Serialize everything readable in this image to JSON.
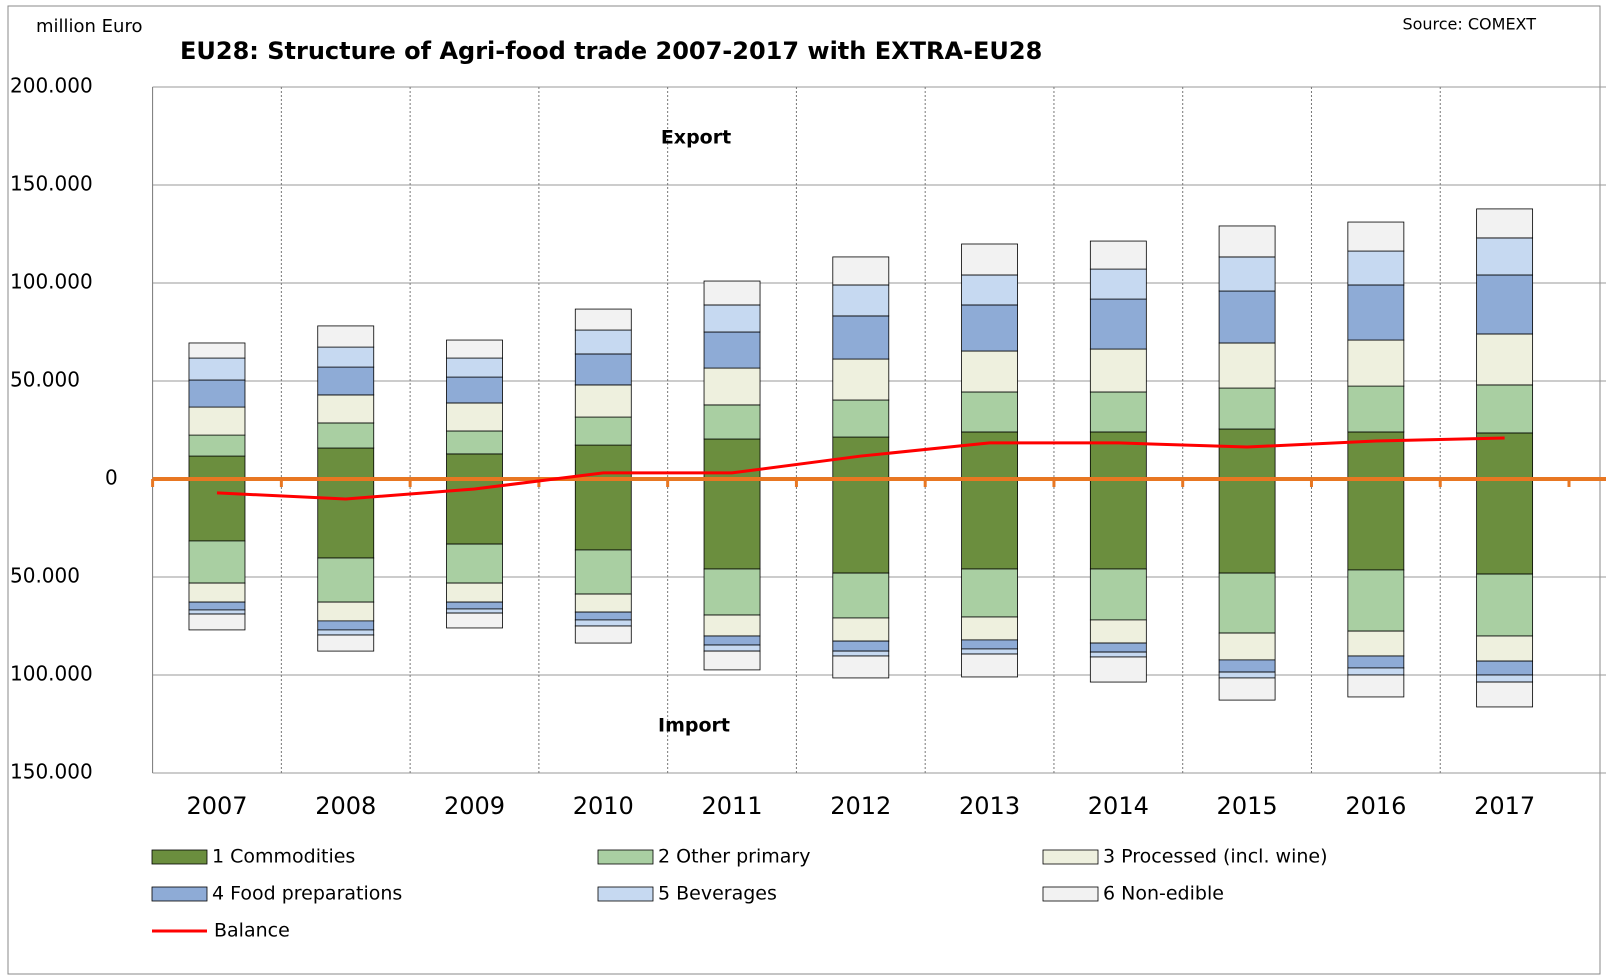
{
  "chart_data": {
    "type": "diverging_stacked_bar",
    "title": "EU28: Structure of Agri-food trade 2007-2017 with EXTRA-EU28",
    "y_axis_label": "million Euro",
    "source": "Source: COMEXT",
    "annotations": [
      "Export",
      "Import"
    ],
    "categories": [
      "2007",
      "2008",
      "2009",
      "2010",
      "2011",
      "2012",
      "2013",
      "2014",
      "2015",
      "2016",
      "2017"
    ],
    "series": [
      {
        "name": "1 Commodities",
        "color": "#6b8e3e",
        "values": [
          11700,
          15800,
          12800,
          17300,
          20400,
          21400,
          24000,
          24000,
          25500,
          24000,
          23500
        ],
        "import_values": [
          -31600,
          -40300,
          -33200,
          -36200,
          -45900,
          -48000,
          -45900,
          -45900,
          -48000,
          -46400,
          -48500
        ]
      },
      {
        "name": "2 Other primary",
        "color": "#a9cfa2",
        "values": [
          10700,
          12800,
          11700,
          14300,
          17400,
          18900,
          20400,
          20400,
          20900,
          23400,
          24500
        ],
        "import_values": [
          -21500,
          -22500,
          -19900,
          -22500,
          -23500,
          -22900,
          -24500,
          -26000,
          -30600,
          -31200,
          -31600
        ]
      },
      {
        "name": "3 Processed (incl. wine)",
        "color": "#eef0de",
        "values": [
          14300,
          14300,
          14300,
          16400,
          18800,
          20900,
          20900,
          21900,
          23000,
          23500,
          26000
        ],
        "import_values": [
          -9700,
          -9600,
          -9700,
          -9200,
          -10700,
          -11800,
          -11700,
          -11800,
          -13700,
          -12700,
          -12800
        ]
      },
      {
        "name": "4 Food preparations",
        "color": "#8eabd6",
        "values": [
          13800,
          14200,
          13200,
          15800,
          18400,
          22000,
          23500,
          25500,
          26500,
          28100,
          30100
        ],
        "import_values": [
          -4000,
          -4600,
          -3500,
          -4000,
          -4600,
          -5100,
          -4600,
          -4600,
          -6200,
          -6100,
          -7100
        ]
      },
      {
        "name": "5 Beverages",
        "color": "#c6d9f1",
        "values": [
          11200,
          10200,
          9700,
          12200,
          13800,
          15800,
          15300,
          15300,
          17400,
          17300,
          18900
        ],
        "import_values": [
          -2100,
          -2600,
          -2100,
          -3100,
          -3100,
          -2500,
          -2600,
          -2500,
          -3000,
          -3600,
          -3600
        ]
      },
      {
        "name": "6 Non-edible",
        "color": "#f2f2f2",
        "values": [
          7700,
          10800,
          9200,
          10700,
          12200,
          14300,
          15800,
          14300,
          15800,
          14800,
          14800
        ],
        "import_values": [
          -8100,
          -8200,
          -7600,
          -8700,
          -9600,
          -11200,
          -11700,
          -12800,
          -11300,
          -11200,
          -12700
        ]
      }
    ],
    "balance": {
      "name": "Balance",
      "color": "#ff0000",
      "values": [
        -7100,
        -10200,
        -5100,
        3100,
        3100,
        11700,
        18400,
        18400,
        16300,
        19400,
        20900
      ]
    },
    "zero_line_color": "#e87722",
    "ylim": [
      -150000,
      200000
    ],
    "yticks": [
      {
        "value": -150000,
        "label": "150.000"
      },
      {
        "value": -100000,
        "label": "100.000"
      },
      {
        "value": -50000,
        "label": "50.000"
      },
      0,
      {
        "value": 50000,
        "label": "50.000"
      },
      {
        "value": 100000,
        "label": "100.000"
      },
      {
        "value": 150000,
        "label": "150.000"
      },
      {
        "value": 200000,
        "label": "200.000"
      }
    ],
    "grid": true
  }
}
